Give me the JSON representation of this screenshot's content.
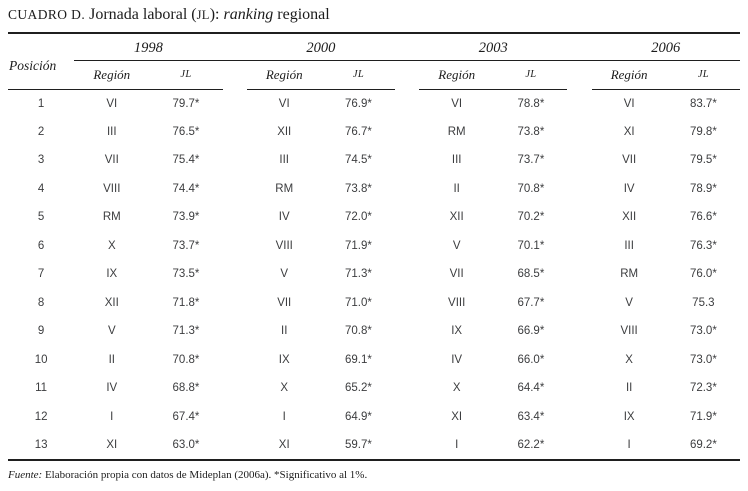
{
  "title": {
    "label": "CUADRO D.",
    "part1": " Jornada laboral (",
    "jl_smallcaps": "JL",
    "part2": "): ",
    "ranking_italic": "ranking",
    "part3": " regional"
  },
  "table": {
    "position_header": "Posición",
    "region_header": "Región",
    "jl_header": "JL",
    "years": [
      "1998",
      "2000",
      "2003",
      "2006"
    ],
    "rows": [
      {
        "pos": "1",
        "values": [
          [
            "VI",
            "79.7*"
          ],
          [
            "VI",
            "76.9*"
          ],
          [
            "VI",
            "78.8*"
          ],
          [
            "VI",
            "83.7*"
          ]
        ]
      },
      {
        "pos": "2",
        "values": [
          [
            "III",
            "76.5*"
          ],
          [
            "XII",
            "76.7*"
          ],
          [
            "RM",
            "73.8*"
          ],
          [
            "XI",
            "79.8*"
          ]
        ]
      },
      {
        "pos": "3",
        "values": [
          [
            "VII",
            "75.4*"
          ],
          [
            "III",
            "74.5*"
          ],
          [
            "III",
            "73.7*"
          ],
          [
            "VII",
            "79.5*"
          ]
        ]
      },
      {
        "pos": "4",
        "values": [
          [
            "VIII",
            "74.4*"
          ],
          [
            "RM",
            "73.8*"
          ],
          [
            "II",
            "70.8*"
          ],
          [
            "IV",
            "78.9*"
          ]
        ]
      },
      {
        "pos": "5",
        "values": [
          [
            "RM",
            "73.9*"
          ],
          [
            "IV",
            "72.0*"
          ],
          [
            "XII",
            "70.2*"
          ],
          [
            "XII",
            "76.6*"
          ]
        ]
      },
      {
        "pos": "6",
        "values": [
          [
            "X",
            "73.7*"
          ],
          [
            "VIII",
            "71.9*"
          ],
          [
            "V",
            "70.1*"
          ],
          [
            "III",
            "76.3*"
          ]
        ]
      },
      {
        "pos": "7",
        "values": [
          [
            "IX",
            "73.5*"
          ],
          [
            "V",
            "71.3*"
          ],
          [
            "VII",
            "68.5*"
          ],
          [
            "RM",
            "76.0*"
          ]
        ]
      },
      {
        "pos": "8",
        "values": [
          [
            "XII",
            "71.8*"
          ],
          [
            "VII",
            "71.0*"
          ],
          [
            "VIII",
            "67.7*"
          ],
          [
            "V",
            "75.3"
          ]
        ]
      },
      {
        "pos": "9",
        "values": [
          [
            "V",
            "71.3*"
          ],
          [
            "II",
            "70.8*"
          ],
          [
            "IX",
            "66.9*"
          ],
          [
            "VIII",
            "73.0*"
          ]
        ]
      },
      {
        "pos": "10",
        "values": [
          [
            "II",
            "70.8*"
          ],
          [
            "IX",
            "69.1*"
          ],
          [
            "IV",
            "66.0*"
          ],
          [
            "X",
            "73.0*"
          ]
        ]
      },
      {
        "pos": "11",
        "values": [
          [
            "IV",
            "68.8*"
          ],
          [
            "X",
            "65.2*"
          ],
          [
            "X",
            "64.4*"
          ],
          [
            "II",
            "72.3*"
          ]
        ]
      },
      {
        "pos": "12",
        "values": [
          [
            "I",
            "67.4*"
          ],
          [
            "I",
            "64.9*"
          ],
          [
            "XI",
            "63.4*"
          ],
          [
            "IX",
            "71.9*"
          ]
        ]
      },
      {
        "pos": "13",
        "values": [
          [
            "XI",
            "63.0*"
          ],
          [
            "XI",
            "59.7*"
          ],
          [
            "I",
            "62.2*"
          ],
          [
            "I",
            "69.2*"
          ]
        ]
      }
    ]
  },
  "footer": {
    "fuente_label": "Fuente:",
    "text": " Elaboración propia con datos de Mideplan (2006a). *Significativo al 1%."
  },
  "colors": {
    "rule": "#1f1f1f",
    "serif_text": "#1c1c1c",
    "data_text": "#3c3d3f",
    "background": "#ffffff"
  }
}
